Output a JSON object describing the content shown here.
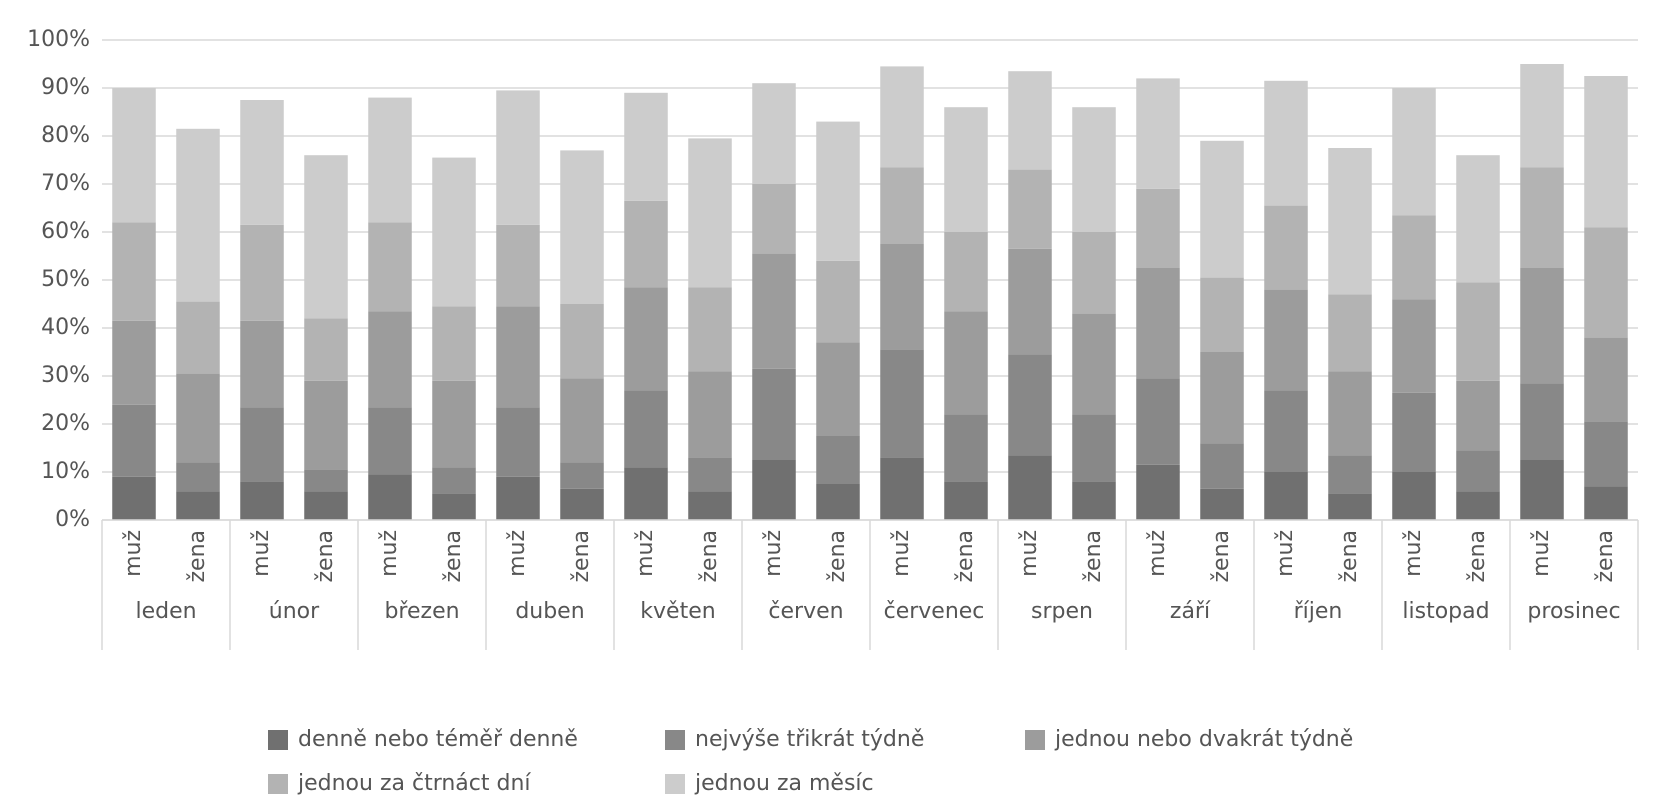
{
  "chart_data": {
    "type": "stacked-bar",
    "categories": [
      "muž",
      "žena",
      "muž",
      "žena",
      "muž",
      "žena",
      "muž",
      "žena",
      "muž",
      "žena",
      "muž",
      "žena",
      "muž",
      "žena",
      "muž",
      "žena",
      "muž",
      "žena",
      "muž",
      "žena",
      "muž",
      "žena",
      "muž",
      "žena"
    ],
    "groups": [
      "leden",
      "únor",
      "březen",
      "duben",
      "květen",
      "červen",
      "červenec",
      "srpen",
      "září",
      "říjen",
      "listopad",
      "prosinec"
    ],
    "series": [
      {
        "name": "denně nebo téměř denně",
        "color": "#707070",
        "values": [
          9,
          6,
          8,
          6,
          9.5,
          5.5,
          9,
          6.5,
          11,
          6,
          12.5,
          7.5,
          13,
          8,
          13.5,
          8,
          11.5,
          6.5,
          10,
          5.5,
          10,
          6,
          12.5,
          7
        ]
      },
      {
        "name": "nejvýše třikrát týdně",
        "color": "#888888",
        "values": [
          15,
          6,
          15.5,
          4.5,
          14,
          5.5,
          14.5,
          5.5,
          16,
          7,
          19,
          10,
          22.5,
          14,
          21,
          14,
          18,
          9.5,
          17,
          8,
          16.5,
          8.5,
          16,
          13.5
        ]
      },
      {
        "name": "jednou nebo dvakrát týdně",
        "color": "#9c9c9c",
        "values": [
          17.5,
          18.5,
          18,
          18.5,
          20,
          18,
          21,
          17.5,
          21.5,
          18,
          24,
          19.5,
          22,
          21.5,
          22,
          21,
          23,
          19,
          21,
          17.5,
          19.5,
          14.5,
          24,
          17.5
        ]
      },
      {
        "name": "jednou za čtrnáct dní",
        "color": "#b3b3b3",
        "values": [
          20.5,
          15,
          20,
          13,
          18.5,
          15.5,
          17,
          15.5,
          18,
          17.5,
          14.5,
          17,
          16,
          16.5,
          16.5,
          17,
          16.5,
          15.5,
          17.5,
          16,
          17.5,
          20.5,
          21,
          23
        ]
      },
      {
        "name": "jednou za měsíc",
        "color": "#cccccc",
        "values": [
          28,
          36,
          26,
          34,
          26,
          31,
          28,
          32,
          22.5,
          31,
          21,
          29,
          21,
          26,
          20.5,
          26,
          23,
          28.5,
          26,
          30.5,
          26.5,
          26.5,
          21.5,
          31.5
        ]
      }
    ],
    "ylim": [
      0,
      100
    ],
    "yticks": [
      {
        "value": 0,
        "label": "0%"
      },
      {
        "value": 10,
        "label": "10%"
      },
      {
        "value": 20,
        "label": "20%"
      },
      {
        "value": 30,
        "label": "30%"
      },
      {
        "value": 40,
        "label": "40%"
      },
      {
        "value": 50,
        "label": "50%"
      },
      {
        "value": 60,
        "label": "60%"
      },
      {
        "value": 70,
        "label": "70%"
      },
      {
        "value": 80,
        "label": "80%"
      },
      {
        "value": 90,
        "label": "90%"
      },
      {
        "value": 100,
        "label": "100%"
      }
    ],
    "grid": true
  }
}
